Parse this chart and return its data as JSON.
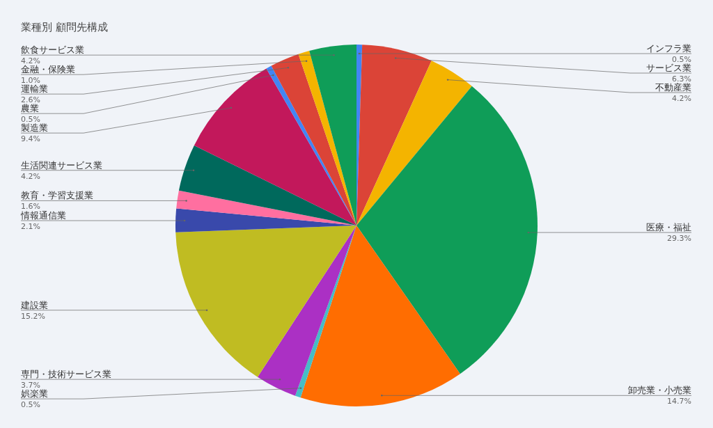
{
  "chart_data": {
    "type": "pie",
    "title": "業種別 顧問先構成",
    "categories": [
      "インフラ業",
      "サービス業",
      "不動産業",
      "医療・福祉",
      "卸売業・小売業",
      "娯楽業",
      "専門・技術サービス業",
      "建設業",
      "情報通信業",
      "教育・学習支援業",
      "生活関連サービス業",
      "製造業",
      "農業",
      "運輸業",
      "金融・保険業",
      "飲食サービス業"
    ],
    "values": [
      0.5,
      6.3,
      4.2,
      29.3,
      14.7,
      0.5,
      3.7,
      15.2,
      2.1,
      1.6,
      4.2,
      9.4,
      0.5,
      2.6,
      1.0,
      4.2
    ],
    "colors": [
      "#4285f4",
      "#db4437",
      "#f4b400",
      "#0f9d58",
      "#ff6d01",
      "#46bdc6",
      "#ab30c4",
      "#c0bc22",
      "#3949ab",
      "#ff6fa0",
      "#00695c",
      "#c2185b",
      "#4285f4",
      "#db4437",
      "#f4b400",
      "#0f9d58"
    ],
    "value_labels": [
      "0.5%",
      "6.3%",
      "4.2%",
      "29.3%",
      "14.7%",
      "0.5%",
      "3.7%",
      "15.2%",
      "2.1%",
      "1.6%",
      "4.2%",
      "9.4%",
      "0.5%",
      "2.6%",
      "1.0%",
      "4.2%"
    ]
  }
}
